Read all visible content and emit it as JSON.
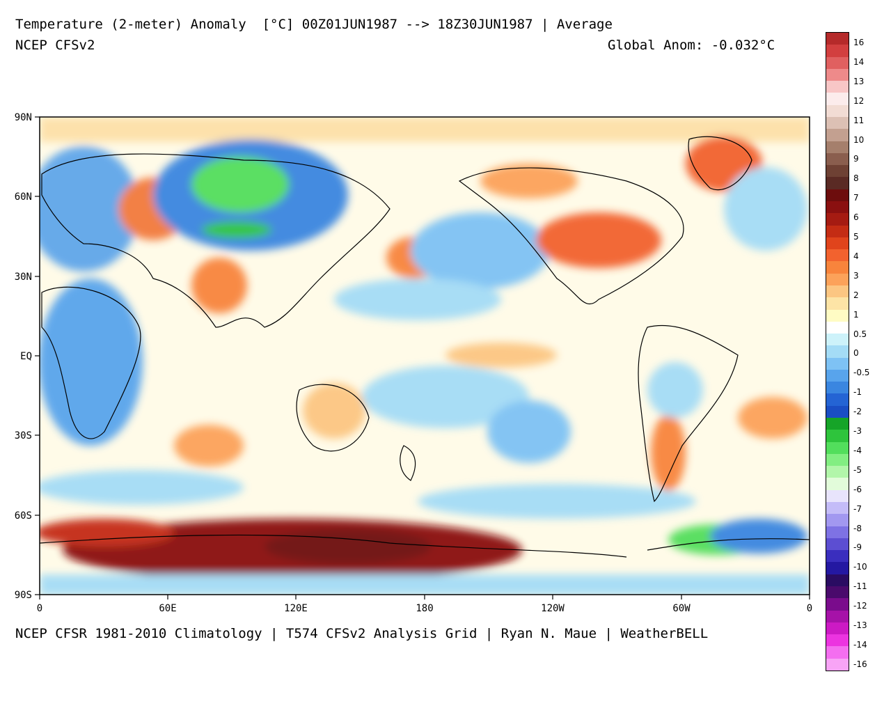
{
  "header": {
    "title": "Temperature (2-meter) Anomaly  [°C] 00Z01JUN1987 --> 18Z30JUN1987 | Average",
    "model": "NCEP CFSv2",
    "global_anom": "Global Anom: -0.032°C"
  },
  "footer": {
    "credits": "NCEP CFSR 1981-2010 Climatology | T574 CFSv2 Analysis Grid | Ryan N. Maue | WeatherBELL"
  },
  "map": {
    "lat_labels": [
      "90N",
      "60N",
      "30N",
      "EQ",
      "30S",
      "60S",
      "90S"
    ],
    "lon_labels": [
      "0",
      "60E",
      "120E",
      "180",
      "120W",
      "60W",
      "0"
    ],
    "colors": {
      "land_outline": "#000000",
      "neutral": "#ffffff"
    }
  },
  "legend": {
    "labels": [
      "16",
      "14",
      "13",
      "12",
      "11",
      "10",
      "9",
      "8",
      "7",
      "6",
      "5",
      "4",
      "3",
      "2",
      "1",
      "0.5",
      "0",
      "-0.5",
      "-1",
      "-2",
      "-3",
      "-4",
      "-5",
      "-6",
      "-7",
      "-8",
      "-9",
      "-10",
      "-11",
      "-12",
      "-13",
      "-14",
      "-16"
    ],
    "colors": [
      "#b52a2a",
      "#d23f3f",
      "#e06060",
      "#ee8a8a",
      "#f8c6c6",
      "#fcecec",
      "#f2dcd4",
      "#dcc0b4",
      "#c3a090",
      "#a57f6c",
      "#8a5e4e",
      "#6e4134",
      "#5a2a24",
      "#6d0d0d",
      "#8a1010",
      "#a51b12",
      "#c42c14",
      "#e0441c",
      "#f2622e",
      "#f8843c",
      "#fca25a",
      "#fcc682",
      "#fde4a6",
      "#fffcc4",
      "#ffffff",
      "#cdf2fa",
      "#a4dcf6",
      "#7ec2f4",
      "#58a4ec",
      "#3a86e0",
      "#2464d4",
      "#1a4ec4",
      "#16a428",
      "#2ec43c",
      "#52de5c",
      "#82ee82",
      "#b2f6aa",
      "#e2fcda",
      "#e8e4fc",
      "#c4bcf8",
      "#a298f0",
      "#7e72e4",
      "#5c4ed2",
      "#3a2ebe",
      "#2418a2",
      "#2a0c62",
      "#4a0a6c",
      "#7a0c8c",
      "#a612a8",
      "#cc1ac4",
      "#ec34e0",
      "#f46ef0",
      "#f8a4f6"
    ]
  }
}
